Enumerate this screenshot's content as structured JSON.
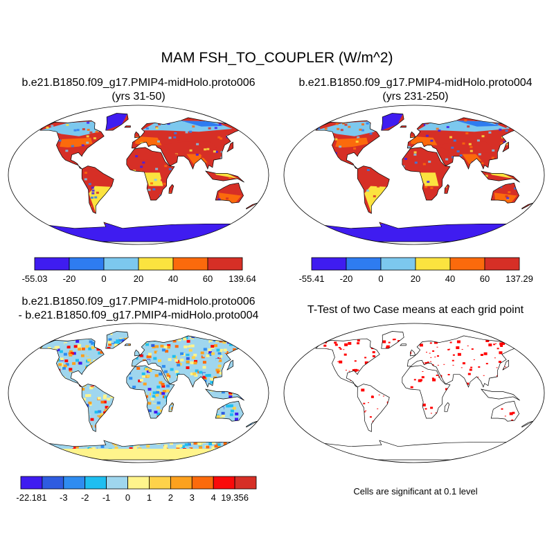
{
  "main_title": "MAM FSH_TO_COUPLER (W/m^2)",
  "panels": [
    {
      "title_line1": "b.e21.B1850.f09_g17.PMIP4-midHolo.proto006",
      "title_line2": "(yrs 31-50)"
    },
    {
      "title_line1": "b.e21.B1850.f09_g17.PMIP4-midHolo.proto004",
      "title_line2": "(yrs 231-250)"
    },
    {
      "title_line1": "b.e21.B1850.f09_g17.PMIP4-midHolo.proto006",
      "title_line2": "- b.e21.B1850.f09_g17.PMIP4-midHolo.proto004"
    },
    {
      "title_line1": "T-Test of two Case means at each grid point",
      "title_line2": ""
    }
  ],
  "colorbars": [
    {
      "colors": [
        "#3f1cf0",
        "#2e7cf0",
        "#7cc8ee",
        "#fbe33f",
        "#fb6a0c",
        "#d62f26"
      ],
      "labels": [
        "-55.03",
        "-20",
        "0",
        "20",
        "40",
        "60",
        "139.64"
      ]
    },
    {
      "colors": [
        "#3f1cf0",
        "#2e7cf0",
        "#7cc8ee",
        "#fbe33f",
        "#fb6a0c",
        "#d62f26"
      ],
      "labels": [
        "-55.41",
        "-20",
        "0",
        "20",
        "40",
        "60",
        "137.29"
      ]
    },
    {
      "colors": [
        "#3f1cf0",
        "#2f5ce0",
        "#2f8cf0",
        "#1fbef0",
        "#9fd6ee",
        "#fff48c",
        "#fed24a",
        "#fca11e",
        "#fb6a0c",
        "#fa0a0a",
        "#d62f26"
      ],
      "labels": [
        "-22.181",
        "-3",
        "-2",
        "-1",
        "0",
        "1",
        "2",
        "3",
        "4",
        "19.356"
      ]
    }
  ],
  "significance_note": "Cells are significant at 0.1 level",
  "significance_color": "#ff0000"
}
